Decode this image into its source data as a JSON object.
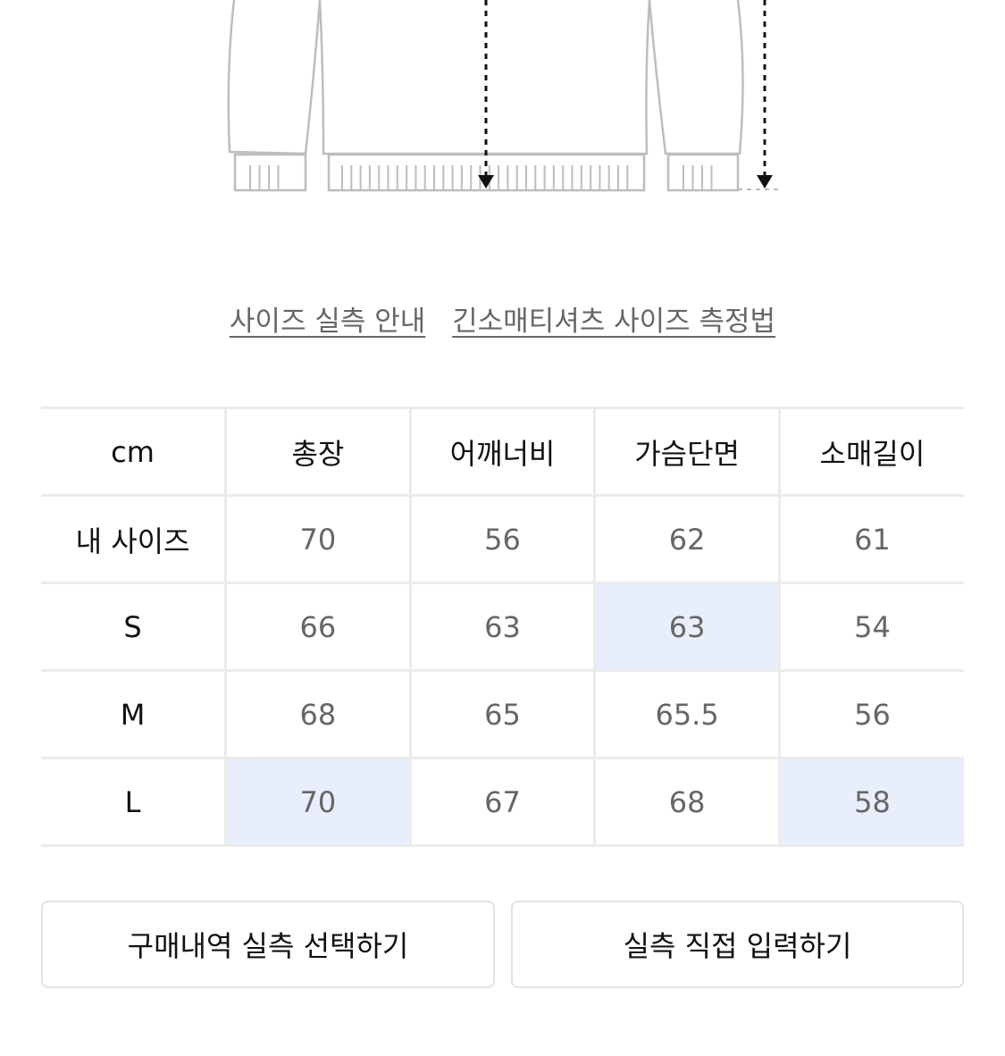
{
  "links": [
    "사이즈 실측 안내",
    "긴소매티셔츠 사이즈 측정법"
  ],
  "table": {
    "headers": [
      "cm",
      "총장",
      "어깨너비",
      "가슴단면",
      "소매길이"
    ],
    "rows": [
      {
        "label": "내 사이즈",
        "values": [
          "70",
          "56",
          "62",
          "61"
        ],
        "highlight": [
          false,
          false,
          false,
          false
        ]
      },
      {
        "label": "S",
        "values": [
          "66",
          "63",
          "63",
          "54"
        ],
        "highlight": [
          false,
          false,
          true,
          false
        ]
      },
      {
        "label": "M",
        "values": [
          "68",
          "65",
          "65.5",
          "56"
        ],
        "highlight": [
          false,
          false,
          false,
          false
        ]
      },
      {
        "label": "L",
        "values": [
          "70",
          "67",
          "68",
          "58"
        ],
        "highlight": [
          true,
          false,
          false,
          true
        ]
      }
    ],
    "highlight_color": "#e8eefc"
  },
  "buttons": {
    "purchase_history": "구매내역 실측 선택하기",
    "manual_input": "실측 직접 입력하기"
  }
}
